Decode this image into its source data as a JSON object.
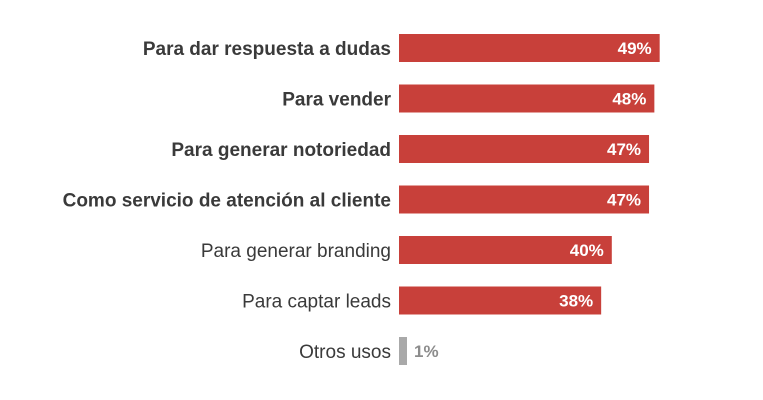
{
  "chart_data": {
    "type": "bar",
    "orientation": "horizontal",
    "categories": [
      "Para dar respuesta a dudas",
      "Para vender",
      "Para generar notoriedad",
      "Como servicio de atención al cliente",
      "Para generar branding",
      "Para captar leads",
      "Otros usos"
    ],
    "values": [
      49,
      48,
      47,
      47,
      40,
      38,
      1
    ],
    "value_labels": [
      "49%",
      "48%",
      "47%",
      "47%",
      "40%",
      "38%",
      "1%"
    ],
    "bold_categories": [
      true,
      true,
      true,
      true,
      false,
      false,
      false
    ],
    "bar_colors": [
      "#c8403a",
      "#c8403a",
      "#c8403a",
      "#c8403a",
      "#c8403a",
      "#c8403a",
      "#a9a9a9"
    ],
    "label_colors": [
      "#ffffff",
      "#ffffff",
      "#ffffff",
      "#ffffff",
      "#ffffff",
      "#ffffff",
      "#8c8c8c"
    ],
    "xlim": [
      0,
      100
    ],
    "grid": false,
    "legend": "none"
  }
}
